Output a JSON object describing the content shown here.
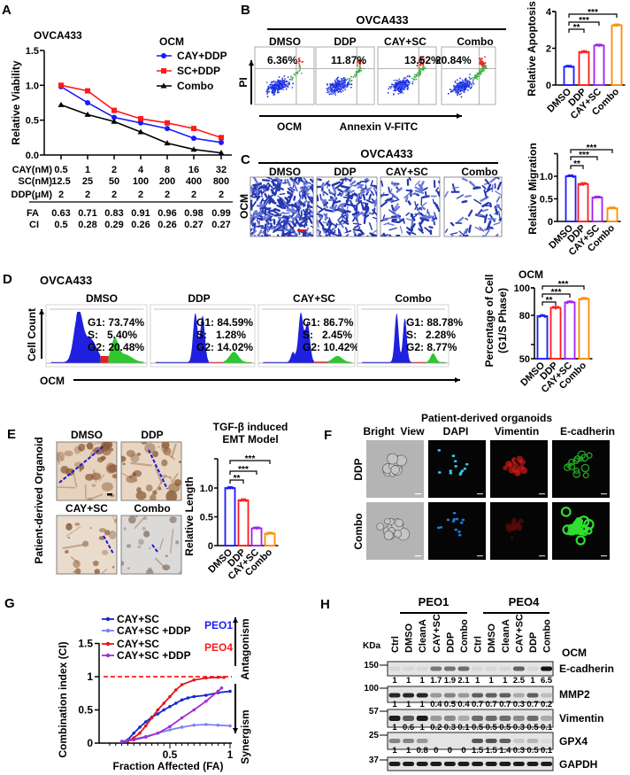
{
  "panel_labels": [
    "A",
    "B",
    "C",
    "D",
    "E",
    "F",
    "G",
    "H"
  ],
  "panel_a": {
    "legend_title": "OCM",
    "dose_table": {
      "labels": [
        "CAY(nM)",
        "SC(nM)",
        "DDP(μM)"
      ],
      "rows": [
        [
          "0.5",
          "1",
          "2",
          "4",
          "8",
          "16",
          "32"
        ],
        [
          "12.5",
          "25",
          "50",
          "100",
          "200",
          "400",
          "800"
        ],
        [
          "2",
          "2",
          "2",
          "2",
          "2",
          "2",
          "2"
        ]
      ]
    },
    "fa_label": "FA",
    "fa": [
      "0.63",
      "0.71",
      "0.83",
      "0.91",
      "0.96",
      "0.98",
      "0.99"
    ],
    "ci_label": "CI",
    "ci": [
      "0.5",
      "0.28",
      "0.29",
      "0.26",
      "0.26",
      "0.27",
      "0.27"
    ]
  },
  "panel_b": {
    "title": "OVCA433",
    "groups": [
      "DMSO",
      "DDP",
      "CAY+SC",
      "Combo"
    ],
    "percentages": [
      "6.36%",
      "11.87%",
      "13.52%",
      "20.84%"
    ],
    "y_axis": "PI",
    "condition": "OCM",
    "x_axis": "Annexin V-FITC"
  },
  "panel_c": {
    "title": "OVCA433",
    "groups": [
      "DMSO",
      "DDP",
      "CAY+SC",
      "Combo"
    ],
    "condition": "OCM"
  },
  "panel_d": {
    "title": "OVCA433",
    "groups": [
      "DMSO",
      "DDP",
      "CAY+SC",
      "Combo"
    ],
    "phases": [
      {
        "g1": "G1: 73.74%",
        "s": "S:   5.40%",
        "g2": "G2: 20.48%"
      },
      {
        "g1": "G1: 84.59%",
        "s": "S:   1.28%",
        "g2": "G2: 14.02%"
      },
      {
        "g1": "G1: 86.7%",
        "s": "S:   2.45%",
        "g2": "G2: 10.42%"
      },
      {
        "g1": "G1: 88.78%",
        "s": "S:   2.28%",
        "g2": "G2: 8.77%"
      }
    ],
    "y_axis": "Cell Count",
    "x_axis": "OCM"
  },
  "panel_e": {
    "side_label": "Patient-derived Organoid",
    "groups": [
      "DMSO",
      "DDP",
      "CAY+SC",
      "Combo"
    ]
  },
  "panel_f": {
    "title": "Patient-derived organoids",
    "columns": [
      "Bright  View",
      "DAPI",
      "Vimentin",
      "E-cadherin"
    ],
    "rows": [
      "DDP",
      "Combo"
    ]
  },
  "panel_g": {
    "group_labels": [
      "PEO1",
      "PEO4"
    ],
    "group_colors": [
      "#1a1aff",
      "#ff1a1a"
    ],
    "antagonism": "Antagonism",
    "synergism": "Synergism"
  },
  "panel_h": {
    "groups": [
      "PEO1",
      "PEO4"
    ],
    "lanes": [
      "Ctrl",
      "DMSO",
      "CleanA",
      "CAY+SC",
      "DDP",
      "Combo",
      "Ctrl",
      "DMSO",
      "CleanA",
      "CAY+SC",
      "DDP",
      "Combo"
    ],
    "kda_label": "KDa",
    "condition": "OCM",
    "markers": [
      "150",
      "100",
      "57",
      "25",
      "37"
    ],
    "proteins": [
      {
        "name": "E-cadherin",
        "quant": [
          "1",
          "1",
          "1",
          "1.7",
          "1.9",
          "2.1",
          "1",
          "1",
          "1",
          "2.5",
          "1",
          "6.5"
        ]
      },
      {
        "name": "MMP2",
        "quant": [
          "1",
          "1",
          "1",
          "0.4",
          "0.5",
          "0.4",
          "0.7",
          "0.7",
          "0.7",
          "0.3",
          "0.7",
          "0.2"
        ]
      },
      {
        "name": "Vimentin",
        "quant": [
          "1",
          "0.6",
          "1",
          "0.2",
          "0.3",
          "0.1",
          "0.5",
          "0.5",
          "0.5",
          "0.3",
          "0.5",
          "0.1"
        ]
      },
      {
        "name": "GPX4",
        "quant": [
          "1",
          "1",
          "0.8",
          "0",
          "0",
          "0",
          "1.5",
          "1.5",
          "1.4",
          "0.3",
          "0.5",
          "0.1"
        ]
      },
      {
        "name": "GAPDH"
      }
    ]
  },
  "chart_data": [
    {
      "type": "line",
      "title": "OVCA433",
      "ylabel": "Relative Viability",
      "ylim": [
        0,
        1.5
      ],
      "yticks": [
        "0.0",
        "0.5",
        "1.0",
        "1.5"
      ],
      "x_categories": [
        "0.5",
        "1",
        "2",
        "4",
        "8",
        "16",
        "32"
      ],
      "legend_title": "OCM",
      "series": [
        {
          "name": "CAY+DDP",
          "color": "#1a1aff",
          "marker": "circle",
          "values": [
            0.98,
            0.75,
            0.54,
            0.46,
            0.38,
            0.24,
            0.18
          ]
        },
        {
          "name": "SC+DDP",
          "color": "#ff1a1a",
          "marker": "square",
          "values": [
            1.0,
            0.92,
            0.64,
            0.52,
            0.46,
            0.38,
            0.25
          ]
        },
        {
          "name": "Combo",
          "color": "#000000",
          "marker": "triangle",
          "values": [
            0.72,
            0.58,
            0.48,
            0.33,
            0.17,
            0.08,
            0.03
          ]
        }
      ]
    },
    {
      "type": "bar",
      "ylabel": "Relative Apoptosis",
      "ylim": [
        0,
        4
      ],
      "yticks": [
        "0",
        "2",
        "4"
      ],
      "categories": [
        "DMSO",
        "DDP",
        "CAY+SC",
        "Combo"
      ],
      "values": [
        1.0,
        1.8,
        2.15,
        3.25
      ],
      "colors": [
        "#1a1aff",
        "#ff1a1a",
        "#a020f0",
        "#ff8c00"
      ],
      "significance": [
        {
          "vs": "DDP",
          "label": "**"
        },
        {
          "vs": "CAY+SC",
          "label": "***"
        },
        {
          "vs": "Combo",
          "label": "***"
        }
      ]
    },
    {
      "type": "bar",
      "ylabel": "Relative Migration",
      "ylim": [
        0,
        1.5
      ],
      "yticks": [
        "0",
        "0.5",
        "1.0"
      ],
      "categories": [
        "DMSO",
        "DDP",
        "CAY+SC",
        "Combo"
      ],
      "values": [
        1.0,
        0.83,
        0.53,
        0.29
      ],
      "colors": [
        "#1a1aff",
        "#ff1a1a",
        "#a020f0",
        "#ff8c00"
      ],
      "significance": [
        {
          "vs": "DDP",
          "label": "**"
        },
        {
          "vs": "CAY+SC",
          "label": "***"
        },
        {
          "vs": "Combo",
          "label": "***"
        }
      ]
    },
    {
      "type": "bar",
      "title": "OCM",
      "ylabel_lines": [
        "Percentage of Cell",
        "(G1/S Phase)"
      ],
      "ylim": [
        50,
        100
      ],
      "yticks": [
        "50",
        "80",
        "100"
      ],
      "categories": [
        "DMSO",
        "DDP",
        "CAY+SC",
        "Combo"
      ],
      "values": [
        79.5,
        85.5,
        89.5,
        92
      ],
      "colors": [
        "#1a1aff",
        "#ff1a1a",
        "#a020f0",
        "#ff8c00"
      ],
      "significance": [
        {
          "vs": "DDP",
          "label": "**"
        },
        {
          "vs": "CAY+SC",
          "label": "***"
        },
        {
          "vs": "Combo",
          "label": "***"
        }
      ]
    },
    {
      "type": "bar",
      "title_lines": [
        "TGF-β induced",
        "EMT Model"
      ],
      "ylabel": "Relative Length",
      "ylim": [
        0,
        1.5
      ],
      "yticks": [
        "0",
        "0.5",
        "1.0"
      ],
      "categories": [
        "DMSO",
        "DDP",
        "CAY+SC",
        "Combo"
      ],
      "values": [
        1.0,
        0.79,
        0.3,
        0.21
      ],
      "colors": [
        "#1a1aff",
        "#ff1a1a",
        "#a020f0",
        "#ff8c00"
      ],
      "significance": [
        {
          "vs": "DDP",
          "label": "**"
        },
        {
          "vs": "CAY+SC",
          "label": "***"
        },
        {
          "vs": "Combo",
          "label": "***"
        }
      ]
    },
    {
      "type": "line",
      "xlabel": "Fraction Affected (FA)",
      "ylabel": "Combination index (CI)",
      "xlim": [
        0,
        1
      ],
      "ylim": [
        0,
        1.5
      ],
      "xticks": [
        "0.5",
        "1"
      ],
      "yticks": [
        "0",
        "0.5",
        "1",
        "1.5"
      ],
      "reference_line": {
        "y": 1,
        "color": "#ff1a1a",
        "style": "dashed"
      },
      "series": [
        {
          "name": "CAY+SC",
          "group": "PEO1",
          "color": "#1428c8",
          "x": [
            0.12,
            0.15,
            0.2,
            0.25,
            0.3,
            0.35,
            0.4,
            0.45,
            0.5,
            0.55,
            0.6,
            0.65,
            0.7,
            0.8,
            0.9,
            1.0
          ],
          "y": [
            0.02,
            0.05,
            0.15,
            0.24,
            0.32,
            0.39,
            0.44,
            0.5,
            0.55,
            0.6,
            0.65,
            0.68,
            0.7,
            0.72,
            0.76,
            0.78
          ]
        },
        {
          "name": "CAY+SC +DDP",
          "group": "PEO1",
          "color": "#7a80f0",
          "x": [
            0.1,
            0.2,
            0.3,
            0.4,
            0.5,
            0.6,
            0.7,
            0.8,
            0.9,
            1.0
          ],
          "y": [
            0.03,
            0.06,
            0.1,
            0.15,
            0.2,
            0.24,
            0.27,
            0.28,
            0.27,
            0.26
          ]
        },
        {
          "name": "CAY+SC",
          "group": "PEO4",
          "color": "#e01818",
          "x": [
            0.15,
            0.2,
            0.25,
            0.3,
            0.35,
            0.4,
            0.45,
            0.5,
            0.55,
            0.6,
            0.7,
            0.8,
            0.9,
            0.95
          ],
          "y": [
            0.03,
            0.08,
            0.15,
            0.26,
            0.38,
            0.5,
            0.6,
            0.7,
            0.8,
            0.88,
            0.95,
            0.98,
            0.99,
            0.99
          ]
        },
        {
          "name": "CAY+SC +DDP",
          "group": "PEO4",
          "color": "#a030d0",
          "x": [
            0.1,
            0.2,
            0.3,
            0.4,
            0.5,
            0.6,
            0.7,
            0.8,
            0.9,
            0.93
          ],
          "y": [
            0.02,
            0.05,
            0.09,
            0.15,
            0.25,
            0.38,
            0.5,
            0.63,
            0.78,
            0.83
          ]
        }
      ]
    }
  ]
}
